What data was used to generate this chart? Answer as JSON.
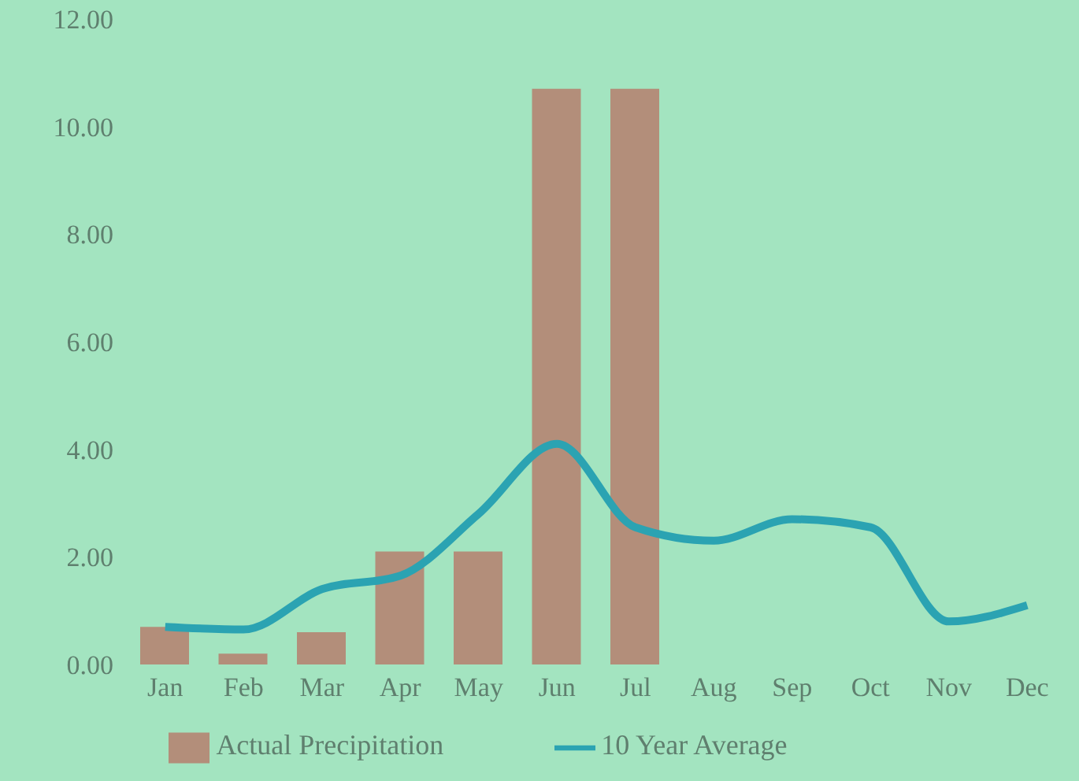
{
  "chart_data": {
    "type": "bar",
    "categories": [
      "Jan",
      "Feb",
      "Mar",
      "Apr",
      "May",
      "Jun",
      "Jul",
      "Aug",
      "Sep",
      "Oct",
      "Nov",
      "Dec"
    ],
    "series": [
      {
        "name": "Actual Precipitation",
        "color": "#b38e7a",
        "values": [
          0.7,
          0.2,
          0.6,
          2.1,
          2.1,
          10.7,
          10.7,
          null,
          null,
          null,
          null,
          null
        ]
      },
      {
        "name": "10 Year Average",
        "type": "line",
        "color": "#2ba3b2",
        "values": [
          0.7,
          0.65,
          1.4,
          1.65,
          2.8,
          4.1,
          2.55,
          2.3,
          2.7,
          2.55,
          0.8,
          1.1
        ]
      }
    ],
    "ylim": [
      0,
      12
    ],
    "yticks": [
      {
        "value": 0,
        "label": "0.00"
      },
      {
        "value": 2,
        "label": "2.00"
      },
      {
        "value": 4,
        "label": "4.00"
      },
      {
        "value": 6,
        "label": "6.00"
      },
      {
        "value": 8,
        "label": "8.00"
      },
      {
        "value": 10,
        "label": "10.00"
      },
      {
        "value": 12,
        "label": "12.00"
      }
    ],
    "grid": false,
    "legend": "bottom",
    "marker": "none"
  }
}
